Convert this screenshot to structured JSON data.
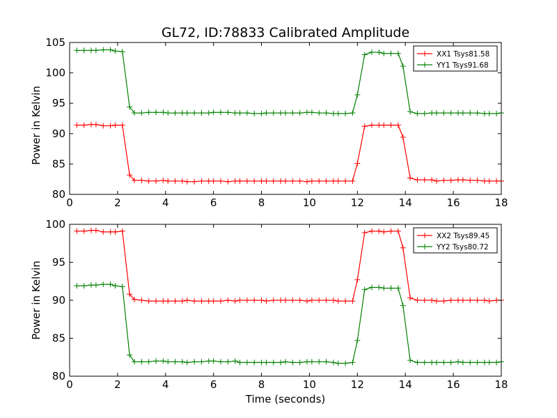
{
  "title": "GL72, ID:78833 Calibrated Amplitude",
  "colors": {
    "xx": "#ff0000",
    "yy": "#008000"
  },
  "chart_data": [
    {
      "type": "line",
      "xlabel": "",
      "ylabel": "Power in Kelvin",
      "xlim": [
        0,
        18
      ],
      "ylim": [
        80,
        105
      ],
      "xticks": [
        0,
        2,
        4,
        6,
        8,
        10,
        12,
        14,
        16,
        18
      ],
      "yticks": [
        80,
        85,
        90,
        95,
        100,
        105
      ],
      "legend_position": "top-right",
      "x": [
        0.3,
        0.6,
        0.9,
        1.1,
        1.4,
        1.7,
        1.9,
        2.2,
        2.5,
        2.7,
        3.0,
        3.3,
        3.6,
        3.9,
        4.1,
        4.4,
        4.7,
        4.9,
        5.2,
        5.5,
        5.8,
        6.0,
        6.3,
        6.6,
        6.9,
        7.1,
        7.4,
        7.7,
        8.0,
        8.2,
        8.5,
        8.8,
        9.0,
        9.3,
        9.6,
        9.9,
        10.1,
        10.4,
        10.7,
        11.0,
        11.2,
        11.5,
        11.8,
        12.0,
        12.3,
        12.6,
        12.9,
        13.1,
        13.4,
        13.7,
        13.9,
        14.2,
        14.5,
        14.8,
        15.1,
        15.3,
        15.6,
        15.9,
        16.2,
        16.4,
        16.7,
        17.0,
        17.3,
        17.5,
        17.8,
        18.0
      ],
      "series": [
        {
          "name": "XX1 Tsys81.58",
          "color": "#ff0000",
          "values": [
            91.4,
            91.4,
            91.5,
            91.5,
            91.3,
            91.3,
            91.4,
            91.4,
            83.2,
            82.3,
            82.3,
            82.2,
            82.2,
            82.3,
            82.2,
            82.2,
            82.2,
            82.1,
            82.1,
            82.2,
            82.2,
            82.2,
            82.2,
            82.1,
            82.2,
            82.2,
            82.2,
            82.2,
            82.2,
            82.2,
            82.2,
            82.2,
            82.2,
            82.2,
            82.2,
            82.1,
            82.2,
            82.2,
            82.2,
            82.2,
            82.2,
            82.2,
            82.2,
            85.1,
            91.2,
            91.4,
            91.4,
            91.4,
            91.4,
            91.4,
            89.4,
            82.7,
            82.4,
            82.4,
            82.4,
            82.2,
            82.3,
            82.3,
            82.4,
            82.4,
            82.3,
            82.3,
            82.2,
            82.2,
            82.2,
            82.2
          ]
        },
        {
          "name": "YY1 Tsys91.68",
          "color": "#008000",
          "values": [
            103.7,
            103.7,
            103.7,
            103.7,
            103.8,
            103.8,
            103.6,
            103.5,
            94.4,
            93.4,
            93.4,
            93.5,
            93.5,
            93.5,
            93.4,
            93.4,
            93.4,
            93.4,
            93.4,
            93.4,
            93.4,
            93.5,
            93.5,
            93.5,
            93.4,
            93.4,
            93.4,
            93.3,
            93.3,
            93.4,
            93.4,
            93.4,
            93.4,
            93.4,
            93.4,
            93.5,
            93.5,
            93.4,
            93.4,
            93.3,
            93.3,
            93.3,
            93.4,
            96.4,
            103.0,
            103.4,
            103.4,
            103.2,
            103.2,
            103.2,
            101.1,
            93.6,
            93.3,
            93.3,
            93.4,
            93.4,
            93.4,
            93.4,
            93.4,
            93.4,
            93.4,
            93.4,
            93.3,
            93.3,
            93.3,
            93.4
          ]
        }
      ]
    },
    {
      "type": "line",
      "xlabel": "Time (seconds)",
      "ylabel": "Power in Kelvin",
      "xlim": [
        0,
        18
      ],
      "ylim": [
        80,
        100
      ],
      "xticks": [
        0,
        2,
        4,
        6,
        8,
        10,
        12,
        14,
        16,
        18
      ],
      "yticks": [
        80,
        85,
        90,
        95,
        100
      ],
      "legend_position": "top-right",
      "x": [
        0.3,
        0.6,
        0.9,
        1.1,
        1.4,
        1.7,
        1.9,
        2.2,
        2.5,
        2.7,
        3.0,
        3.3,
        3.6,
        3.9,
        4.1,
        4.4,
        4.7,
        4.9,
        5.2,
        5.5,
        5.8,
        6.0,
        6.3,
        6.6,
        6.9,
        7.1,
        7.4,
        7.7,
        8.0,
        8.2,
        8.5,
        8.8,
        9.0,
        9.3,
        9.6,
        9.9,
        10.1,
        10.4,
        10.7,
        11.0,
        11.2,
        11.5,
        11.8,
        12.0,
        12.3,
        12.6,
        12.9,
        13.1,
        13.4,
        13.7,
        13.9,
        14.2,
        14.5,
        14.8,
        15.1,
        15.3,
        15.6,
        15.9,
        16.2,
        16.4,
        16.7,
        17.0,
        17.3,
        17.5,
        17.8,
        18.0
      ],
      "series": [
        {
          "name": "XX2 Tsys89.45",
          "color": "#ff0000",
          "values": [
            99.1,
            99.1,
            99.2,
            99.2,
            99.0,
            99.0,
            99.0,
            99.1,
            90.8,
            90.1,
            90.0,
            89.9,
            89.9,
            89.9,
            89.9,
            89.9,
            89.9,
            90.0,
            89.9,
            89.9,
            89.9,
            89.9,
            89.9,
            90.0,
            89.9,
            90.0,
            90.0,
            90.0,
            90.0,
            89.9,
            90.0,
            90.0,
            90.0,
            90.0,
            90.0,
            89.9,
            90.0,
            90.0,
            90.0,
            90.0,
            89.9,
            89.9,
            89.9,
            92.7,
            98.9,
            99.1,
            99.1,
            99.0,
            99.1,
            99.1,
            96.9,
            90.3,
            90.0,
            90.0,
            90.0,
            89.9,
            89.9,
            90.0,
            90.0,
            90.0,
            90.0,
            90.0,
            90.0,
            89.9,
            90.0,
            90.0
          ]
        },
        {
          "name": "YY2 Tsys80.72",
          "color": "#008000",
          "values": [
            91.9,
            91.9,
            92.0,
            92.0,
            92.1,
            92.1,
            91.9,
            91.8,
            82.8,
            81.9,
            81.9,
            81.9,
            82.0,
            82.0,
            81.9,
            81.9,
            81.9,
            81.8,
            81.9,
            81.9,
            82.0,
            82.0,
            81.9,
            81.9,
            82.0,
            81.8,
            81.8,
            81.8,
            81.8,
            81.8,
            81.8,
            81.8,
            81.9,
            81.8,
            81.8,
            81.9,
            81.9,
            81.9,
            81.9,
            81.8,
            81.7,
            81.7,
            81.8,
            84.7,
            91.4,
            91.7,
            91.7,
            91.6,
            91.6,
            91.6,
            89.3,
            82.1,
            81.8,
            81.8,
            81.8,
            81.8,
            81.8,
            81.8,
            81.9,
            81.8,
            81.8,
            81.8,
            81.8,
            81.8,
            81.8,
            81.9
          ]
        }
      ]
    }
  ]
}
